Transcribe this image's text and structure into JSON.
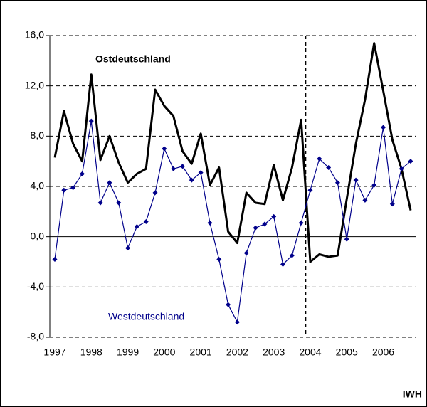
{
  "chart_data": {
    "type": "line",
    "categories": [
      "1997",
      null,
      null,
      null,
      "1998",
      null,
      null,
      null,
      "1999",
      null,
      null,
      null,
      "2000",
      null,
      null,
      null,
      "2001",
      null,
      null,
      null,
      "2002",
      null,
      null,
      null,
      "2003",
      null,
      null,
      null,
      "2004",
      null,
      null,
      null,
      "2005",
      null,
      null,
      null,
      "2006",
      null,
      null,
      null
    ],
    "series": [
      {
        "name": "Ostdeutschland",
        "color": "#000000",
        "values": [
          6.3,
          10.0,
          7.4,
          6.0,
          12.9,
          6.1,
          8.0,
          5.9,
          4.3,
          5.0,
          5.4,
          11.7,
          10.4,
          9.6,
          6.8,
          5.8,
          8.2,
          4.1,
          5.5,
          0.4,
          -0.5,
          3.5,
          2.7,
          2.6,
          5.7,
          2.9,
          5.5,
          9.3,
          -2.0,
          -1.4,
          -1.6,
          -1.5,
          3.0,
          7.4,
          10.9,
          15.4,
          11.6,
          7.7,
          5.4,
          2.1
        ]
      },
      {
        "name": "Westdeutschland",
        "color": "#00008b",
        "values": [
          -1.8,
          3.7,
          3.9,
          5.0,
          9.2,
          2.7,
          4.3,
          2.7,
          -0.9,
          0.8,
          1.2,
          3.5,
          7.0,
          5.4,
          5.6,
          4.5,
          5.1,
          1.1,
          -1.8,
          -5.4,
          -6.8,
          -1.3,
          0.7,
          1.0,
          1.6,
          -2.2,
          -1.5,
          1.1,
          3.7,
          6.2,
          5.5,
          4.3,
          -0.2,
          4.5,
          2.9,
          4.1,
          8.7,
          2.6,
          5.4,
          6.0
        ]
      }
    ],
    "ylim": [
      -8,
      16
    ],
    "yticks": [
      {
        "value": -8,
        "label": "-8,0"
      },
      {
        "value": -4,
        "label": "-4,0"
      },
      {
        "value": 0,
        "label": "0,0"
      },
      {
        "value": 4,
        "label": "4,0"
      },
      {
        "value": 8,
        "label": "8,0"
      },
      {
        "value": 12,
        "label": "12,0"
      },
      {
        "value": 16,
        "label": "16,0"
      }
    ],
    "grid": true,
    "source": "IWH"
  }
}
